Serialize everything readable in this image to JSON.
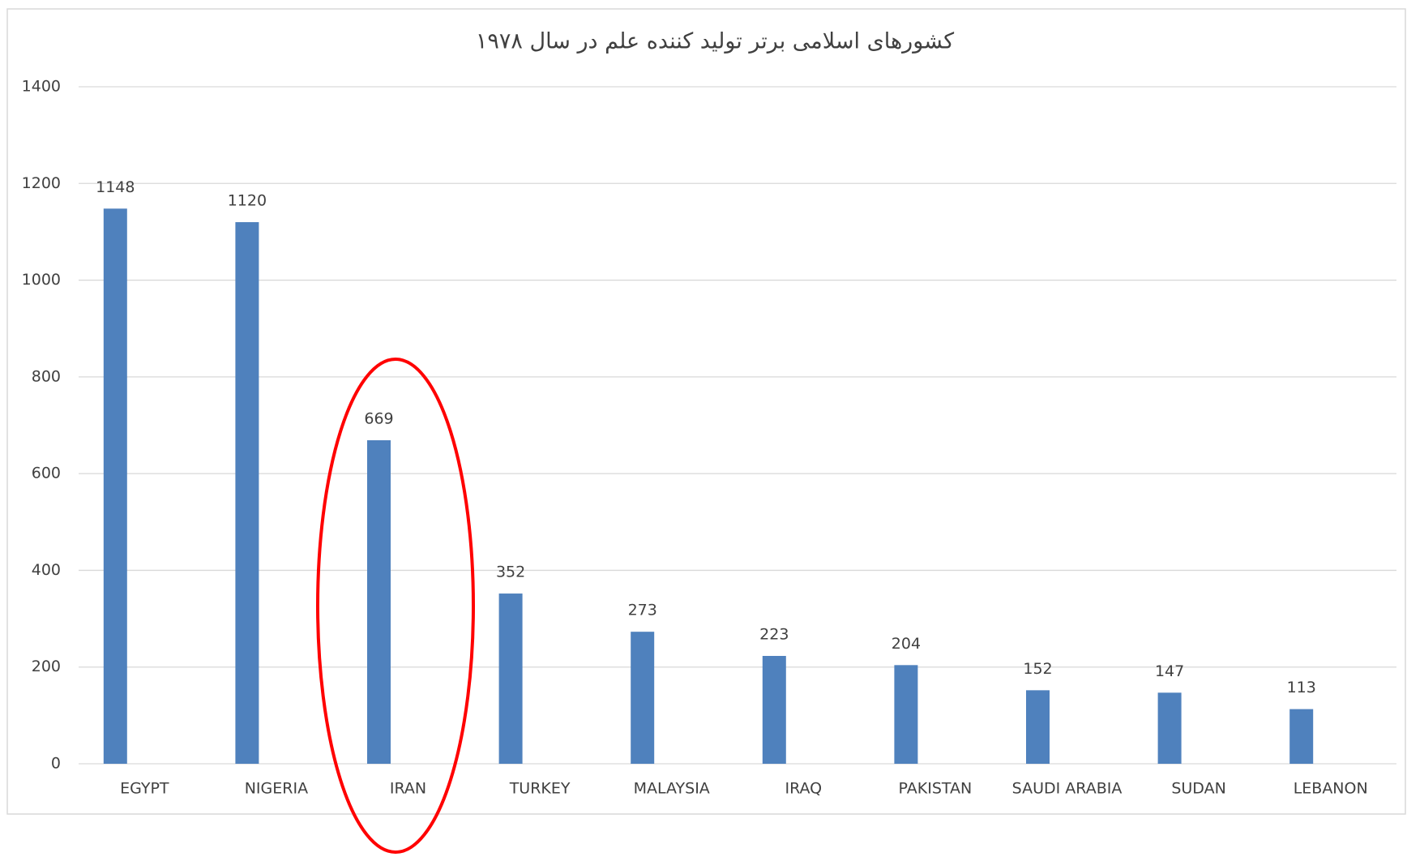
{
  "chart_data": {
    "type": "bar",
    "title": "کشورهای اسلامی برتر تولید کننده علم در سال ۱۹۷۸",
    "categories": [
      "EGYPT",
      "NIGERIA",
      "IRAN",
      "TURKEY",
      "MALAYSIA",
      "IRAQ",
      "PAKISTAN",
      "SAUDI ARABIA",
      "SUDAN",
      "LEBANON"
    ],
    "values": [
      1148,
      1120,
      669,
      352,
      273,
      223,
      204,
      152,
      147,
      113
    ],
    "color": "#4f81bd",
    "ylim": [
      0,
      1400
    ],
    "yticks": [
      0,
      200,
      400,
      600,
      800,
      1000,
      1200,
      1400
    ],
    "grid": true
  }
}
